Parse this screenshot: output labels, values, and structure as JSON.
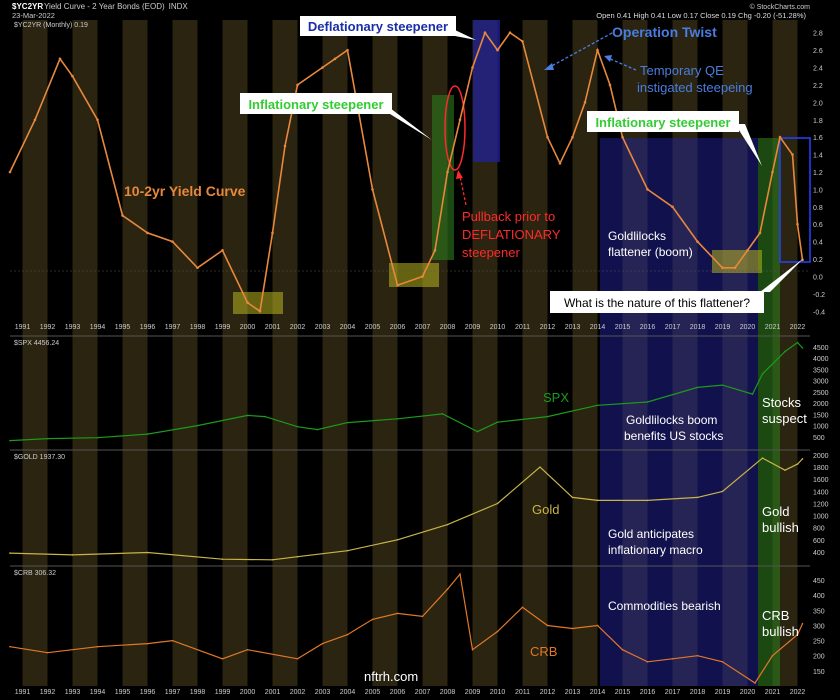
{
  "header": {
    "symbol": "$YC2YR",
    "title": "Yield Curve - 2 Year Bonds (EOD)",
    "exchange": "INDX",
    "date": "23-Mar-2022",
    "brand": "© StockCharts.com",
    "ohlc": "Open 0.41  High 0.41  Low 0.17  Close 0.19  Chg -0.20 (-51.28%)",
    "indicator": "$YC2YR (Monthly) 0.19"
  },
  "watermark": "nftrh.com",
  "colors": {
    "yield": "#e8883c",
    "spx": "#1c9a1c",
    "gold": "#c8b448",
    "crb": "#e07828",
    "blue_zone": "#22229a",
    "green_zone": "#2d7a1c",
    "yellow_box": "#b8b420",
    "annotation_green": "#33cc33",
    "annotation_blue": "#1a2ea8",
    "annotation_red": "#ff2a2a"
  },
  "chart_data": [
    {
      "type": "line",
      "title": "$YC2YR (Monthly) 0.19",
      "series": [
        {
          "name": "10-2yr Yield Curve",
          "x": [
            1990.5,
            1991.5,
            1992.5,
            1993,
            1994,
            1995,
            1996,
            1997,
            1998,
            1999,
            2000,
            2000.5,
            2001,
            2001.5,
            2002,
            2003,
            2003.5,
            2004,
            2005,
            2006,
            2007,
            2007.5,
            2008,
            2008.5,
            2009,
            2009.5,
            2010,
            2010.5,
            2011,
            2012,
            2012.5,
            2013,
            2013.5,
            2014,
            2014.5,
            2015,
            2016,
            2017,
            2018,
            2019,
            2019.5,
            2020,
            2020.5,
            2021,
            2021.3,
            2021.8,
            2022,
            2022.2
          ],
          "values": [
            1.2,
            1.8,
            2.5,
            2.3,
            1.8,
            0.7,
            0.5,
            0.4,
            0.1,
            0.3,
            -0.3,
            -0.4,
            0.5,
            1.5,
            2.2,
            2.4,
            2.5,
            2.6,
            1.0,
            -0.1,
            0.0,
            0.3,
            1.2,
            1.8,
            2.4,
            2.8,
            2.6,
            2.8,
            2.7,
            1.6,
            1.3,
            1.6,
            2.0,
            2.6,
            2.2,
            1.6,
            1.0,
            0.8,
            0.4,
            0.1,
            0.1,
            0.3,
            0.5,
            1.2,
            1.6,
            1.4,
            0.6,
            0.19
          ]
        }
      ],
      "ylim": [
        -0.5,
        2.9
      ],
      "yticks": [
        "2.8",
        "2.6",
        "2.4",
        "2.2",
        "2.0",
        "1.8",
        "1.6",
        "1.4",
        "1.2",
        "1.0",
        "0.8",
        "0.6",
        "0.4",
        "0.2",
        "0.0",
        "-0.2",
        "-0.4"
      ],
      "xticks": [
        "1991",
        "1992",
        "1993",
        "1994",
        "1995",
        "1996",
        "1997",
        "1998",
        "1999",
        "2000",
        "2001",
        "2002",
        "2003",
        "2004",
        "2005",
        "2006",
        "2007",
        "2008",
        "2009",
        "2010",
        "2011",
        "2012",
        "2013",
        "2014",
        "2015",
        "2016",
        "2017",
        "2018",
        "2019",
        "2020",
        "2021",
        "2022"
      ],
      "xlim": [
        1990.5,
        2022.5
      ]
    },
    {
      "type": "line",
      "title": "$SPX 4456.24",
      "series": [
        {
          "name": "SPX",
          "x": [
            1990.5,
            1992,
            1994,
            1996,
            1998,
            2000,
            2000.7,
            2002,
            2002.8,
            2004,
            2006,
            2007.8,
            2009.2,
            2010,
            2012,
            2014,
            2016,
            2018,
            2019,
            2020.2,
            2020.6,
            2021.5,
            2022,
            2022.2
          ],
          "values": [
            330,
            420,
            460,
            620,
            1000,
            1450,
            1400,
            950,
            820,
            1130,
            1300,
            1520,
            730,
            1150,
            1400,
            1900,
            2050,
            2700,
            2800,
            2400,
            3300,
            4300,
            4700,
            4456
          ]
        }
      ],
      "ylim": [
        0,
        4900
      ],
      "yticks": [
        "4500",
        "4000",
        "3500",
        "3000",
        "2500",
        "2000",
        "1500",
        "1000",
        "500"
      ]
    },
    {
      "type": "line",
      "title": "$GOLD 1937.30",
      "series": [
        {
          "name": "Gold",
          "x": [
            1990.5,
            1993,
            1996,
            1999,
            2001,
            2002,
            2004,
            2006,
            2008,
            2010,
            2011.7,
            2013,
            2014,
            2016,
            2018,
            2019,
            2020.6,
            2021.5,
            2022,
            2022.2
          ],
          "values": [
            380,
            350,
            390,
            280,
            270,
            320,
            420,
            600,
            850,
            1200,
            1800,
            1300,
            1250,
            1250,
            1300,
            1400,
            1950,
            1750,
            1850,
            1937
          ]
        }
      ],
      "ylim": [
        200,
        2050
      ],
      "yticks": [
        "2000",
        "1800",
        "1600",
        "1400",
        "1200",
        "1000",
        "800",
        "600",
        "400"
      ]
    },
    {
      "type": "line",
      "title": "$CRB 306.32",
      "series": [
        {
          "name": "CRB",
          "x": [
            1990.5,
            1992,
            1994,
            1996,
            1997,
            1999,
            2000,
            2002,
            2003,
            2004,
            2005,
            2006,
            2007,
            2008,
            2008.5,
            2009,
            2010,
            2011,
            2012,
            2013,
            2014,
            2015,
            2016,
            2017,
            2018,
            2019,
            2020.3,
            2021,
            2022,
            2022.2
          ],
          "values": [
            230,
            210,
            230,
            240,
            250,
            190,
            220,
            190,
            240,
            270,
            320,
            340,
            330,
            420,
            470,
            220,
            280,
            360,
            300,
            290,
            300,
            220,
            180,
            190,
            200,
            180,
            110,
            200,
            270,
            306
          ]
        }
      ],
      "ylim": [
        100,
        490
      ],
      "yticks": [
        "450",
        "400",
        "350",
        "300",
        "250",
        "200",
        "150"
      ]
    }
  ],
  "annotations": {
    "deflationary_steepener": "Deflationary steepener",
    "operation_twist": "Operation Twist",
    "temporary_qe_1": "Temporary QE",
    "temporary_qe_2": "instigated steepeing",
    "inflationary_steepener_1": "Inflationary steepener",
    "inflationary_steepener_2": "Inflationary steepener",
    "yield_curve_label": "10-2yr Yield Curve",
    "pullback_1": "Pullback prior to",
    "pullback_2": "DEFLATIONARY",
    "pullback_3": "steepener",
    "goldilocks_1": "Goldlilocks",
    "goldilocks_2": "flattener (boom)",
    "question": "What is the nature of this flattener?",
    "spx_label": "SPX",
    "goldilocks_boom_1": "Goldlilocks boom",
    "goldilocks_boom_2": "benefits US stocks",
    "stocks_suspect_1": "Stocks",
    "stocks_suspect_2": "suspect",
    "gold_label": "Gold",
    "gold_anticipates_1": "Gold anticipates",
    "gold_anticipates_2": "inflationary macro",
    "gold_bullish_1": "Gold",
    "gold_bullish_2": "bullish",
    "commodities_bearish": "Commodities bearish",
    "crb_label": "CRB",
    "crb_bullish_1": "CRB",
    "crb_bullish_2": "bullish"
  }
}
